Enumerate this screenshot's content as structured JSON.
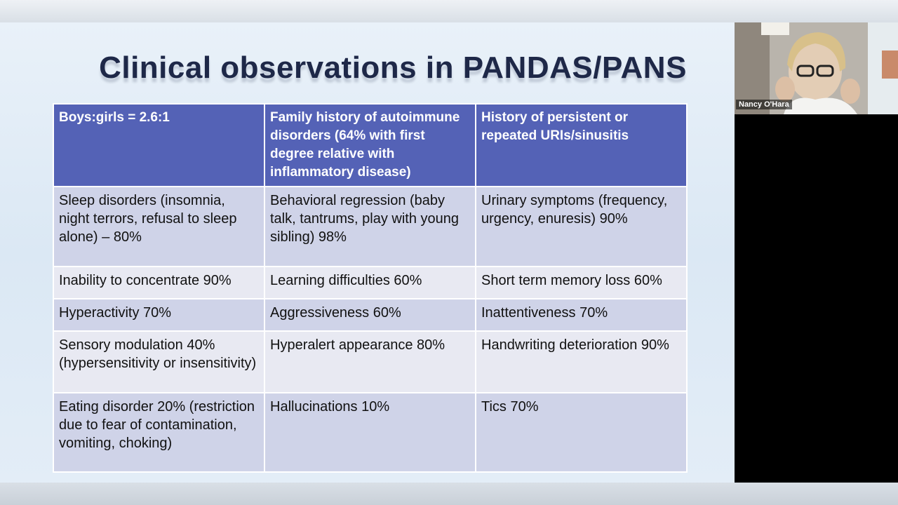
{
  "slide": {
    "title": "Clinical observations in PANDAS/PANS",
    "table": {
      "header": [
        "Boys:girls = 2.6:1",
        "Family history of autoimmune disorders (64% with first degree relative with inflammatory disease)",
        "History of persistent or repeated URIs/sinusitis"
      ],
      "rows": [
        [
          "Sleep disorders (insomnia, night terrors, refusal to sleep alone) – 80%",
          "Behavioral regression (baby talk, tantrums, play with young sibling) 98%",
          "Urinary symptoms (frequency, urgency, enuresis) 90%"
        ],
        [
          "Inability to concentrate 90%",
          "Learning difficulties 60%",
          "Short term memory loss 60%"
        ],
        [
          "Hyperactivity 70%",
          "Aggressiveness 60%",
          "Inattentiveness 70%"
        ],
        [
          "Sensory modulation 40% (hypersensitivity or insensitivity)",
          "Hyperalert appearance 80%",
          "Handwriting deterioration 90%"
        ],
        [
          "Eating disorder 20% (restriction due to fear of contamination, vomiting, choking)",
          "Hallucinations 10%",
          "Tics 70%"
        ]
      ]
    }
  },
  "participant": {
    "name": "Nancy O'Hara"
  }
}
